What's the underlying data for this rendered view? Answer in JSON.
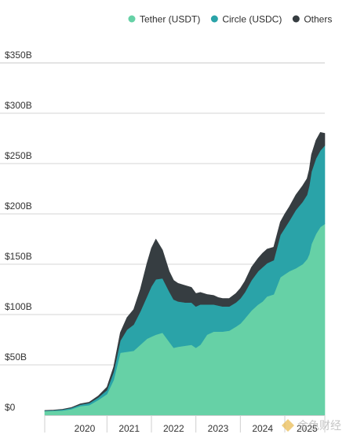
{
  "chart_data": {
    "type": "area",
    "stacked": true,
    "title": "",
    "xlabel": "",
    "ylabel": "",
    "x_range": [
      2019.6,
      2025.9
    ],
    "ylim": [
      0,
      350
    ],
    "y_ticks": [
      0,
      50,
      100,
      150,
      200,
      250,
      300,
      350
    ],
    "y_tick_labels": [
      "$0",
      "$50B",
      "$100B",
      "$150B",
      "$200B",
      "$250B",
      "$300B",
      "$350B"
    ],
    "x_ticks": [
      2020,
      2021,
      2022,
      2023,
      2024,
      2025
    ],
    "x_tick_labels": [
      "2020",
      "2021",
      "2022",
      "2023",
      "2024",
      "2025"
    ],
    "grid": "horizontal",
    "legend": "top-right",
    "x": [
      2019.6,
      2019.8,
      2020.0,
      2020.2,
      2020.4,
      2020.6,
      2020.8,
      2021.0,
      2021.15,
      2021.3,
      2021.45,
      2021.6,
      2021.75,
      2021.9,
      2022.0,
      2022.1,
      2022.25,
      2022.4,
      2022.5,
      2022.6,
      2022.75,
      2022.9,
      2023.0,
      2023.1,
      2023.25,
      2023.4,
      2023.5,
      2023.6,
      2023.75,
      2023.9,
      2024.0,
      2024.1,
      2024.25,
      2024.4,
      2024.5,
      2024.6,
      2024.75,
      2024.9,
      2025.0,
      2025.1,
      2025.25,
      2025.4,
      2025.5,
      2025.55,
      2025.6,
      2025.7,
      2025.8,
      2025.9
    ],
    "series": [
      {
        "name": "Tether (USDT)",
        "color": "#66d1a6",
        "values": [
          4,
          4.3,
          4.6,
          6,
          9,
          10,
          15,
          21,
          35,
          62,
          63,
          64,
          70,
          76,
          78,
          80,
          82,
          73,
          67,
          68,
          69,
          70,
          67,
          70,
          80,
          83,
          83,
          83,
          84,
          88,
          91,
          96,
          104,
          110,
          113,
          118,
          120,
          137,
          140,
          143,
          146,
          150,
          155,
          160,
          170,
          180,
          187,
          190
        ]
      },
      {
        "name": "Circle (USDC)",
        "color": "#2aa3a8",
        "values": [
          0.5,
          0.6,
          1,
          1.2,
          1.5,
          2,
          2.5,
          4,
          8,
          12,
          22,
          26,
          33,
          42,
          50,
          55,
          54,
          50,
          48,
          45,
          43,
          42,
          41,
          40,
          30,
          27,
          26,
          25,
          24,
          24,
          25,
          26,
          30,
          33,
          34,
          33,
          34,
          42,
          46,
          50,
          58,
          62,
          64,
          68,
          72,
          75,
          76,
          78
        ]
      },
      {
        "name": "Others",
        "color": "#363d41",
        "values": [
          0.2,
          0.2,
          0.3,
          0.5,
          0.8,
          1,
          1.5,
          3,
          5,
          8,
          12,
          15,
          22,
          33,
          38,
          40,
          28,
          20,
          19,
          18,
          17,
          15,
          13,
          12,
          10,
          9,
          8,
          8,
          8,
          9,
          10,
          11,
          13,
          13,
          14,
          14,
          13,
          13,
          14,
          14,
          15,
          16,
          16,
          16,
          17,
          18,
          18,
          12
        ]
      }
    ]
  },
  "watermark": {
    "text": "金色财经"
  }
}
